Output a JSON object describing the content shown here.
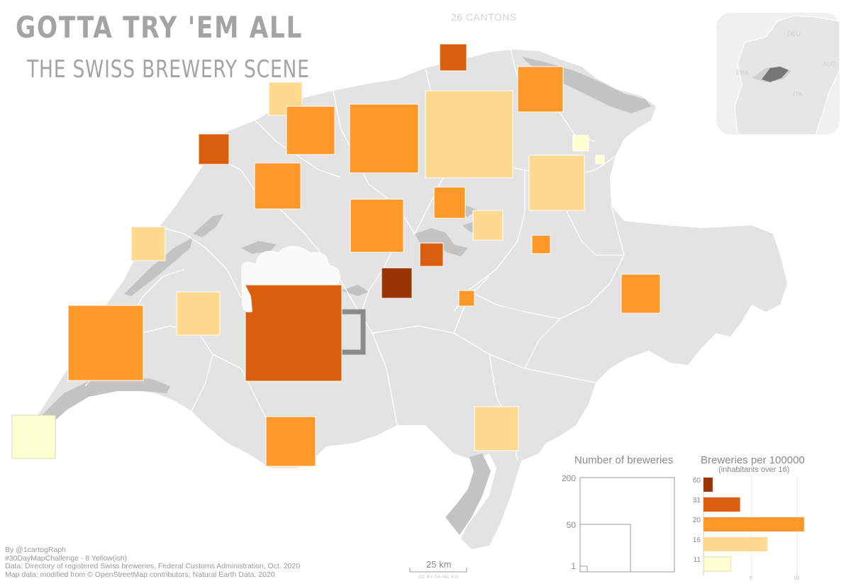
{
  "title": "GOTTA TRY 'EM ALL",
  "subtitle": "THE SWISS BREWERY SCENE",
  "cantons_label": "26 CANTONS",
  "credits": [
    "By @1cartogRaph",
    "#30DayMapChallenge - 8 Yellow(ish)",
    "Data:  Directory of registered Swiss breweries, Federal Customs Administration, Oct. 2020",
    "Map data: modified from © OpenStreetMap contributors; Natural Earth Data, 2020"
  ],
  "scale_bar": {
    "label": "25 km"
  },
  "license": "CC BY-SA-NC 4.0",
  "inset": {
    "labels": [
      "DEU",
      "FRA",
      "AUT",
      "ITA"
    ]
  },
  "legend_size": {
    "title": "Number of breweries",
    "ticks": [
      "200",
      "50",
      "1"
    ]
  },
  "legend_rate": {
    "title": "Breweries per 100000",
    "subtitle": "(inhabitants over 16)",
    "axis_ticks": [
      "5",
      "10"
    ],
    "categories": [
      {
        "label": "60",
        "color": "#993404",
        "count": 1
      },
      {
        "label": "31",
        "color": "#d95f0e",
        "count": 4
      },
      {
        "label": "20",
        "color": "#fe9929",
        "count": 11
      },
      {
        "label": "16",
        "color": "#fed98e",
        "count": 7
      },
      {
        "label": "11",
        "color": "#ffffd4",
        "count": 3
      }
    ]
  },
  "colors": {
    "land": "#e3e3e3",
    "lake": "#c3c3c3",
    "border": "#ffffff",
    "text": "#a4a4a4"
  }
}
